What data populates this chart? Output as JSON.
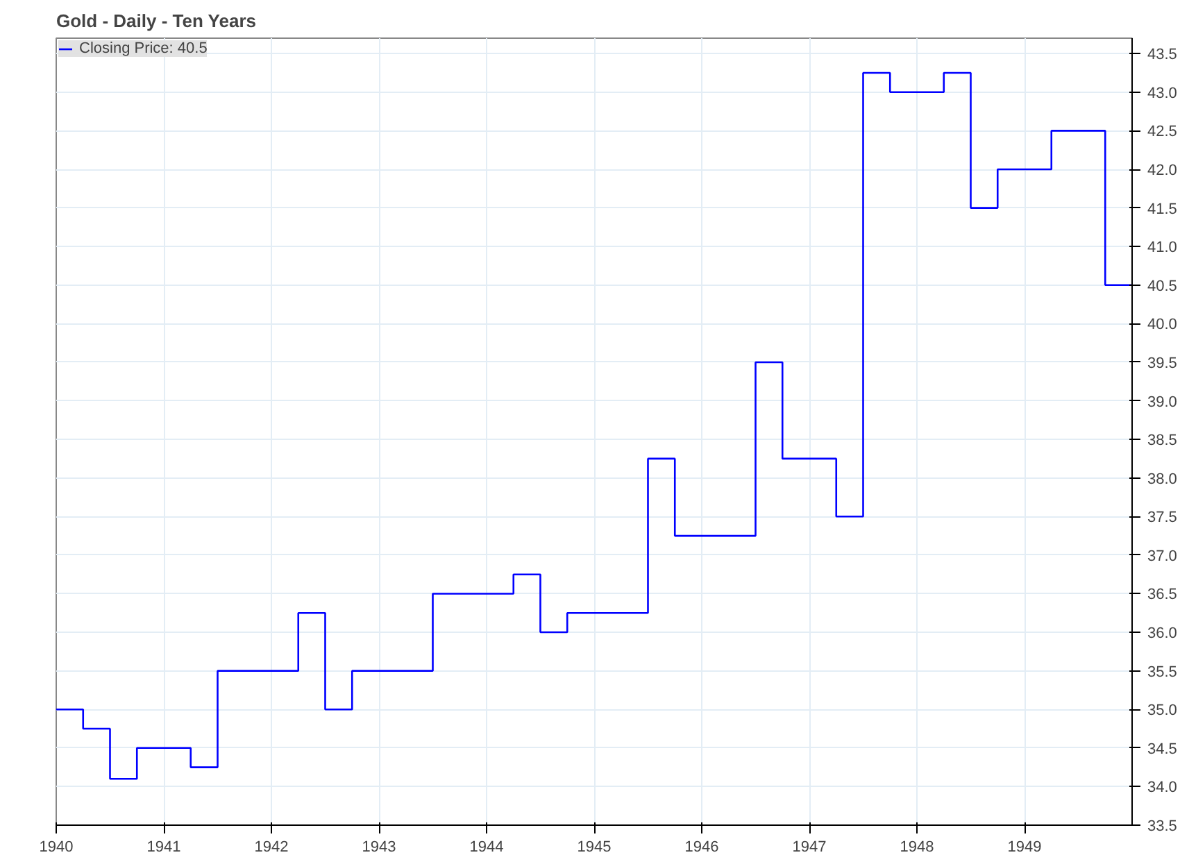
{
  "chart_data": {
    "type": "step",
    "title": "Gold - Daily - Ten Years",
    "x": [
      1940,
      1940.25,
      1940.5,
      1940.75,
      1941.25,
      1941.5,
      1942.25,
      1942.5,
      1942.75,
      1943.5,
      1944.25,
      1944.5,
      1944.75,
      1945.5,
      1945.75,
      1946.5,
      1946.75,
      1947.25,
      1947.5,
      1947.75,
      1948.25,
      1948.5,
      1948.75,
      1949.25,
      1949.75,
      1950
    ],
    "series": [
      {
        "name": "Closing Price: 40.5",
        "color": "#0000ff",
        "values": [
          35.0,
          34.75,
          34.1,
          34.5,
          34.25,
          35.5,
          36.25,
          35.0,
          35.5,
          36.5,
          36.75,
          36.0,
          36.25,
          38.25,
          37.25,
          39.5,
          38.25,
          37.5,
          43.25,
          43.0,
          43.25,
          41.5,
          42.0,
          42.5,
          40.5,
          40.5
        ]
      }
    ],
    "xlim": [
      1940,
      1950
    ],
    "xticks": [
      1940,
      1941,
      1942,
      1943,
      1944,
      1945,
      1946,
      1947,
      1948,
      1949
    ],
    "ylim": [
      33.5,
      43.7
    ],
    "yticks": [
      {
        "value": 33.5,
        "label": "33.5"
      },
      {
        "value": 34,
        "label": "34.0"
      },
      {
        "value": 34.5,
        "label": "34.5"
      },
      {
        "value": 35,
        "label": "35.0"
      },
      {
        "value": 35.5,
        "label": "35.5"
      },
      {
        "value": 36,
        "label": "36.0"
      },
      {
        "value": 36.5,
        "label": "36.5"
      },
      {
        "value": 37,
        "label": "37.0"
      },
      {
        "value": 37.5,
        "label": "37.5"
      },
      {
        "value": 38,
        "label": "38.0"
      },
      {
        "value": 38.5,
        "label": "38.5"
      },
      {
        "value": 39,
        "label": "39.0"
      },
      {
        "value": 39.5,
        "label": "39.5"
      },
      {
        "value": 40,
        "label": "40.0"
      },
      {
        "value": 40.5,
        "label": "40.5"
      },
      {
        "value": 41,
        "label": "41.0"
      },
      {
        "value": 41.5,
        "label": "41.5"
      },
      {
        "value": 42,
        "label": "42.0"
      },
      {
        "value": 42.5,
        "label": "42.5"
      },
      {
        "value": 43,
        "label": "43.0"
      },
      {
        "value": 43.5,
        "label": "43.5"
      }
    ],
    "grid": true,
    "legend": "top left",
    "line_style": "solid"
  }
}
